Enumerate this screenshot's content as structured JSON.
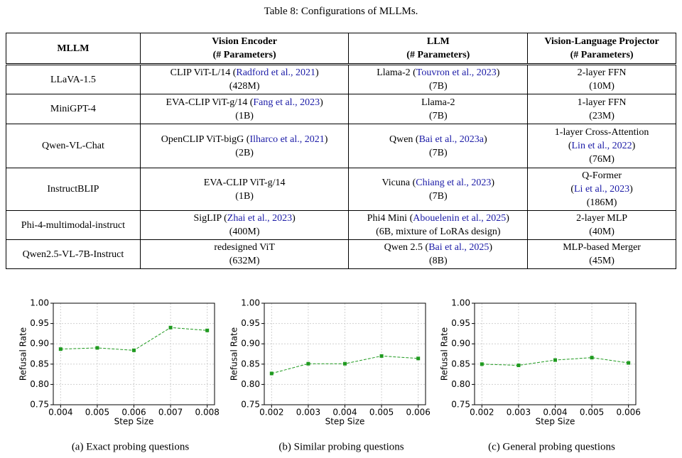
{
  "table": {
    "title": "Table 8: Configurations of MLLMs.",
    "header": [
      [
        "MLLM"
      ],
      [
        "Vision Encoder",
        "(# Parameters)"
      ],
      [
        "LLM",
        "(# Parameters)"
      ],
      [
        "Vision-Language Projector",
        "(# Parameters)"
      ]
    ],
    "rows": [
      [
        [
          [
            "LLaVA-1.5"
          ]
        ],
        [
          [
            "CLIP ViT-L/14 (",
            {
              "text": "Radford et al., 2021",
              "link": true
            },
            ")"
          ],
          [
            "(428M)"
          ]
        ],
        [
          [
            "Llama-2 (",
            {
              "text": "Touvron et al., 2023",
              "link": true
            },
            ")"
          ],
          [
            "(7B)"
          ]
        ],
        [
          [
            "2-layer FFN"
          ],
          [
            "(10M)"
          ]
        ]
      ],
      [
        [
          [
            "MiniGPT-4"
          ]
        ],
        [
          [
            "EVA-CLIP ViT-g/14 (",
            {
              "text": "Fang et al., 2023",
              "link": true
            },
            ")"
          ],
          [
            "(1B)"
          ]
        ],
        [
          [
            "Llama-2"
          ],
          [
            "(7B)"
          ]
        ],
        [
          [
            "1-layer FFN"
          ],
          [
            "(23M)"
          ]
        ]
      ],
      [
        [
          [
            "Qwen-VL-Chat"
          ]
        ],
        [
          [
            "OpenCLIP ViT-bigG (",
            {
              "text": "Ilharco et al., 2021",
              "link": true
            },
            ")"
          ],
          [
            "(2B)"
          ]
        ],
        [
          [
            "Qwen (",
            {
              "text": "Bai et al., 2023a",
              "link": true
            },
            ")"
          ],
          [
            "(7B)"
          ]
        ],
        [
          [
            "1-layer Cross-Attention"
          ],
          [
            "(",
            {
              "text": "Lin et al., 2022",
              "link": true
            },
            ")"
          ],
          [
            "(76M)"
          ]
        ]
      ],
      [
        [
          [
            "InstructBLIP"
          ]
        ],
        [
          [
            "EVA-CLIP ViT-g/14"
          ],
          [
            "(1B)"
          ]
        ],
        [
          [
            "Vicuna (",
            {
              "text": "Chiang et al., 2023",
              "link": true
            },
            ")"
          ],
          [
            "(7B)"
          ]
        ],
        [
          [
            "Q-Former"
          ],
          [
            "(",
            {
              "text": "Li et al., 2023",
              "link": true
            },
            ")"
          ],
          [
            "(186M)"
          ]
        ]
      ],
      [
        [
          [
            "Phi-4-multimodal-instruct"
          ]
        ],
        [
          [
            "SigLIP (",
            {
              "text": "Zhai et al., 2023",
              "link": true
            },
            ")"
          ],
          [
            "(400M)"
          ]
        ],
        [
          [
            "Phi4 Mini (",
            {
              "text": "Abouelenin et al., 2025",
              "link": true
            },
            ")"
          ],
          [
            "(6B, mixture of LoRAs design)"
          ]
        ],
        [
          [
            "2-layer MLP"
          ],
          [
            "(40M)"
          ]
        ]
      ],
      [
        [
          [
            "Qwen2.5-VL-7B-Instruct"
          ]
        ],
        [
          [
            "redesigned ViT"
          ],
          [
            "(632M)"
          ]
        ],
        [
          [
            "Qwen 2.5 (",
            {
              "text": "Bai et al., 2025",
              "link": true
            },
            ")"
          ],
          [
            "(8B)"
          ]
        ],
        [
          [
            "MLP-based Merger"
          ],
          [
            "(45M)"
          ]
        ]
      ]
    ]
  },
  "chart_data": [
    {
      "type": "line",
      "caption": "(a) Exact probing questions",
      "x_label": "Step Size",
      "y_label": "Refusal Rate",
      "x": [
        0.004,
        0.005,
        0.006,
        0.007,
        0.008
      ],
      "series": [
        {
          "color": "#1f9a1f",
          "values": [
            0.887,
            0.89,
            0.884,
            0.94,
            0.933
          ]
        }
      ],
      "xlim": [
        0.0038,
        0.0082
      ],
      "xticks": [
        0.004,
        0.005,
        0.006,
        0.007,
        0.008
      ],
      "ylim": [
        0.75,
        1.0
      ],
      "yticks": [
        {
          "value": 0.75,
          "label": "0.75"
        },
        {
          "value": 0.8,
          "label": "0.80"
        },
        {
          "value": 0.85,
          "label": "0.85"
        },
        {
          "value": 0.9,
          "label": "0.90"
        },
        {
          "value": 0.95,
          "label": "0.95"
        },
        {
          "value": 1.0,
          "label": "1.00"
        }
      ],
      "grid": true
    },
    {
      "type": "line",
      "caption": "(b) Similar probing questions",
      "x_label": "Step Size",
      "y_label": "Refusal Rate",
      "x": [
        0.002,
        0.003,
        0.004,
        0.005,
        0.006
      ],
      "series": [
        {
          "color": "#1f9a1f",
          "values": [
            0.827,
            0.851,
            0.851,
            0.87,
            0.864
          ]
        }
      ],
      "xlim": [
        0.0018,
        0.0062
      ],
      "xticks": [
        0.002,
        0.003,
        0.004,
        0.005,
        0.006
      ],
      "ylim": [
        0.75,
        1.0
      ],
      "yticks": [
        {
          "value": 0.75,
          "label": "0.75"
        },
        {
          "value": 0.8,
          "label": "0.80"
        },
        {
          "value": 0.85,
          "label": "0.85"
        },
        {
          "value": 0.9,
          "label": "0.90"
        },
        {
          "value": 0.95,
          "label": "0.95"
        },
        {
          "value": 1.0,
          "label": "1.00"
        }
      ],
      "grid": true
    },
    {
      "type": "line",
      "caption": "(c) General probing questions",
      "x_label": "Step Size",
      "y_label": "Refusal Rate",
      "x": [
        0.002,
        0.003,
        0.004,
        0.005,
        0.006
      ],
      "series": [
        {
          "color": "#1f9a1f",
          "values": [
            0.85,
            0.847,
            0.86,
            0.866,
            0.853
          ]
        }
      ],
      "xlim": [
        0.0018,
        0.0062
      ],
      "xticks": [
        0.002,
        0.003,
        0.004,
        0.005,
        0.006
      ],
      "ylim": [
        0.75,
        1.0
      ],
      "yticks": [
        {
          "value": 0.75,
          "label": "0.75"
        },
        {
          "value": 0.8,
          "label": "0.80"
        },
        {
          "value": 0.85,
          "label": "0.85"
        },
        {
          "value": 0.9,
          "label": "0.90"
        },
        {
          "value": 0.95,
          "label": "0.95"
        },
        {
          "value": 1.0,
          "label": "1.00"
        }
      ],
      "grid": true
    }
  ]
}
